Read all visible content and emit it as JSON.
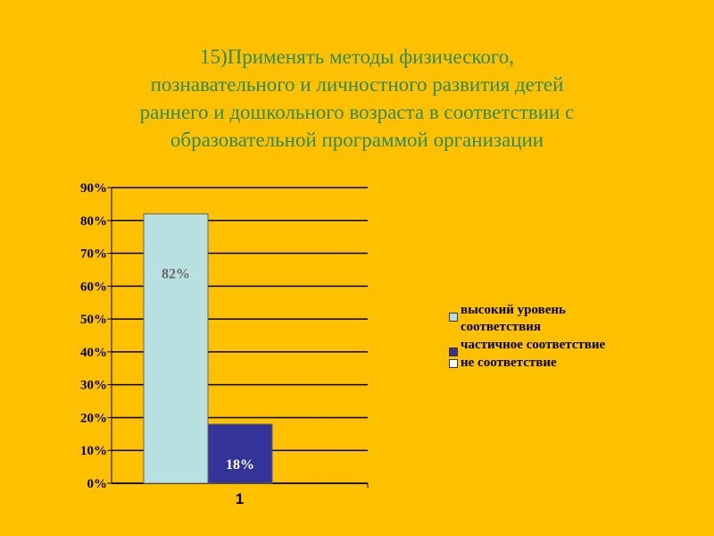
{
  "title_lines": [
    "15)Применять методы физического,",
    "познавательного и личностного развития детей",
    "раннего и дошкольного возраста в соответствии с",
    "образовательной программой организации"
  ],
  "chart_data": {
    "type": "bar",
    "categories": [
      "1"
    ],
    "series": [
      {
        "name": "высокий уровень соответствия",
        "values": [
          82
        ],
        "color": "#b8e0e0",
        "data_label": "82%",
        "label_color": "#666666"
      },
      {
        "name": "частичное соответствие",
        "values": [
          18
        ],
        "color": "#333399",
        "data_label": "18%",
        "label_color": "#ffffff"
      },
      {
        "name": "не соответствие",
        "values": [
          0
        ],
        "color": "#ffffff",
        "data_label": "",
        "label_color": "#000000"
      }
    ],
    "y_ticks": [
      "0%",
      "10%",
      "20%",
      "30%",
      "40%",
      "50%",
      "60%",
      "70%",
      "80%",
      "90%"
    ],
    "ylim": [
      0,
      90
    ],
    "grid": true,
    "legend": "right"
  }
}
